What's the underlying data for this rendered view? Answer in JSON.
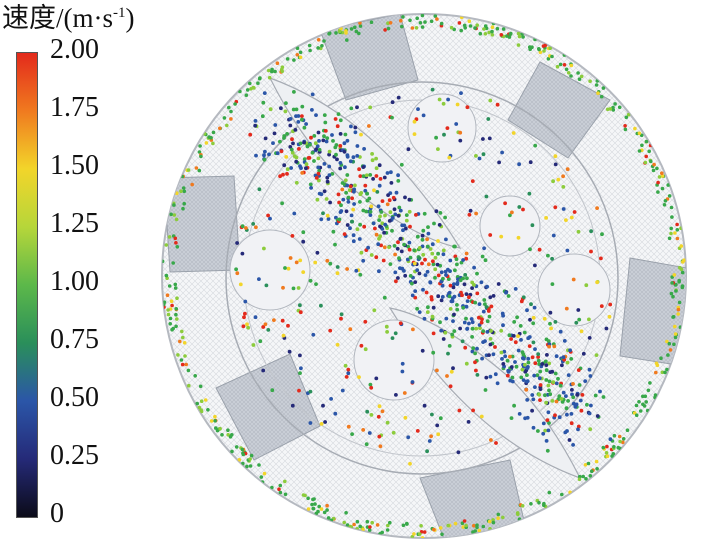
{
  "legend": {
    "title": "速度/(m·s",
    "title_sup": "-1",
    "title_close": ")",
    "ticks": [
      "2.00",
      "1.75",
      "1.50",
      "1.25",
      "1.00",
      "0.75",
      "0.50",
      "0.25",
      "0"
    ],
    "colormap": [
      "#e32a1c",
      "#f07a1f",
      "#f2d52a",
      "#b6d63a",
      "#5cb84a",
      "#2a8f5a",
      "#2b56a8",
      "#252a78",
      "#0b0b18"
    ]
  },
  "image": {
    "subject": "particle-velocity-distribution-in-circular-vessel",
    "particle_colors": [
      "#e32a1c",
      "#f07a1f",
      "#f2d52a",
      "#8ccc3c",
      "#38a84a",
      "#2a8f5a",
      "#2b56a8",
      "#252a78"
    ]
  }
}
